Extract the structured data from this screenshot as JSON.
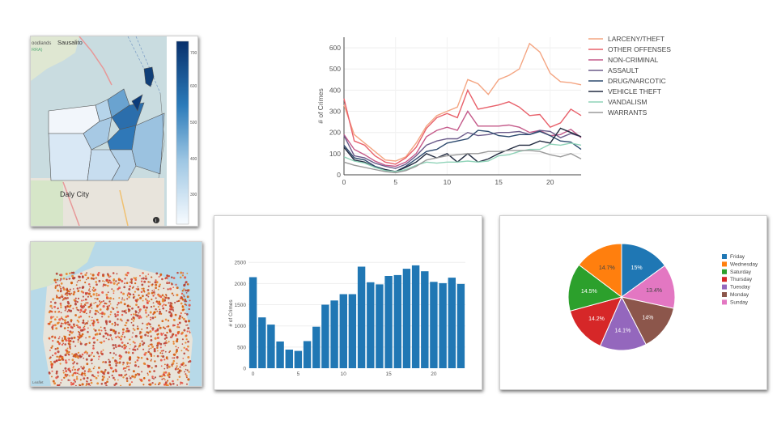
{
  "map_choropleth": {
    "labels": {
      "sausalito": "Sausalito",
      "woodlands": "oodlands",
      "rra": "RRA)",
      "daly_city": "Daly City"
    },
    "colorbar_ticks": [
      700,
      600,
      500,
      400,
      300
    ]
  },
  "map_points": {
    "credit": "Leaflet"
  },
  "chart_data": [
    {
      "type": "line",
      "ylabel": "# of Crimes",
      "xlim": [
        0,
        23
      ],
      "ylim": [
        0,
        650
      ],
      "x_ticks": [
        0,
        5,
        10,
        15,
        20
      ],
      "y_ticks": [
        0,
        100,
        200,
        300,
        400,
        500,
        600
      ],
      "x": [
        0,
        1,
        2,
        3,
        4,
        5,
        6,
        7,
        8,
        9,
        10,
        11,
        12,
        13,
        14,
        15,
        16,
        17,
        18,
        19,
        20,
        21,
        22,
        23
      ],
      "series": [
        {
          "name": "LARCENY/THEFT",
          "color": "#f4a582",
          "values": [
            330,
            190,
            150,
            110,
            70,
            65,
            85,
            150,
            230,
            280,
            300,
            320,
            450,
            430,
            380,
            450,
            470,
            500,
            620,
            580,
            480,
            440,
            435,
            425
          ]
        },
        {
          "name": "OTHER OFFENSES",
          "color": "#e8606a",
          "values": [
            360,
            160,
            140,
            90,
            60,
            50,
            80,
            130,
            220,
            270,
            290,
            270,
            400,
            310,
            320,
            330,
            345,
            320,
            280,
            285,
            225,
            245,
            310,
            280
          ]
        },
        {
          "name": "NON-CRIMINAL",
          "color": "#c45a8a",
          "values": [
            190,
            120,
            95,
            65,
            45,
            40,
            60,
            100,
            180,
            210,
            225,
            210,
            300,
            230,
            230,
            230,
            235,
            225,
            200,
            210,
            185,
            190,
            215,
            175
          ]
        },
        {
          "name": "ASSAULT",
          "color": "#6b5b8a",
          "values": [
            185,
            90,
            80,
            55,
            40,
            30,
            50,
            90,
            140,
            160,
            170,
            170,
            200,
            185,
            190,
            200,
            200,
            205,
            190,
            210,
            205,
            175,
            195,
            180
          ]
        },
        {
          "name": "DRUG/NARCOTIC",
          "color": "#2d4a6e",
          "values": [
            140,
            80,
            70,
            40,
            25,
            15,
            40,
            75,
            110,
            120,
            150,
            160,
            170,
            210,
            205,
            185,
            180,
            190,
            190,
            205,
            185,
            160,
            155,
            120
          ]
        },
        {
          "name": "VEHICLE THEFT",
          "color": "#222b40",
          "values": [
            130,
            70,
            60,
            35,
            25,
            15,
            35,
            60,
            100,
            80,
            100,
            60,
            100,
            60,
            75,
            100,
            120,
            140,
            140,
            160,
            150,
            220,
            200,
            180
          ]
        },
        {
          "name": "VANDALISM",
          "color": "#8fd3b8",
          "values": [
            85,
            65,
            55,
            35,
            20,
            15,
            25,
            45,
            60,
            55,
            60,
            60,
            65,
            60,
            65,
            90,
            95,
            110,
            120,
            120,
            145,
            140,
            150,
            140
          ]
        },
        {
          "name": "WARRANTS",
          "color": "#9a9a9a",
          "values": [
            60,
            45,
            35,
            25,
            15,
            10,
            20,
            40,
            70,
            80,
            90,
            95,
            100,
            100,
            110,
            110,
            115,
            115,
            115,
            110,
            95,
            85,
            100,
            75
          ]
        }
      ]
    },
    {
      "type": "bar",
      "ylabel": "# of Crimes",
      "ylim": [
        0,
        2600
      ],
      "x_ticks": [
        0,
        5,
        10,
        15,
        20
      ],
      "y_ticks": [
        0,
        500,
        1000,
        1500,
        2000,
        2500
      ],
      "categories": [
        0,
        1,
        2,
        3,
        4,
        5,
        6,
        7,
        8,
        9,
        10,
        11,
        12,
        13,
        14,
        15,
        16,
        17,
        18,
        19,
        20,
        21,
        22,
        23
      ],
      "values": [
        2150,
        1200,
        1030,
        630,
        440,
        410,
        640,
        980,
        1500,
        1600,
        1750,
        1750,
        2400,
        2030,
        1980,
        2180,
        2200,
        2350,
        2430,
        2290,
        2040,
        2010,
        2140,
        1990
      ],
      "color": "#2077b4"
    },
    {
      "type": "pie",
      "slices": [
        {
          "name": "Friday",
          "label": "15%",
          "value": 15.0,
          "color": "#1f77b4"
        },
        {
          "name": "Wednesday",
          "label": "14.7%",
          "value": 14.7,
          "color": "#ff7f0e"
        },
        {
          "name": "Saturday",
          "label": "14.5%",
          "value": 14.5,
          "color": "#2ca02c"
        },
        {
          "name": "Thursday",
          "label": "14.2%",
          "value": 14.2,
          "color": "#d62728"
        },
        {
          "name": "Tuesday",
          "label": "14.1%",
          "value": 14.1,
          "color": "#9467bd"
        },
        {
          "name": "Monday",
          "label": "14%",
          "value": 14.0,
          "color": "#8c564b"
        },
        {
          "name": "Sunday",
          "label": "13.4%",
          "value": 13.4,
          "color": "#e377c2"
        }
      ],
      "pie_order": [
        "Friday",
        "Sunday",
        "Monday",
        "Tuesday",
        "Thursday",
        "Saturday",
        "Wednesday"
      ]
    }
  ]
}
